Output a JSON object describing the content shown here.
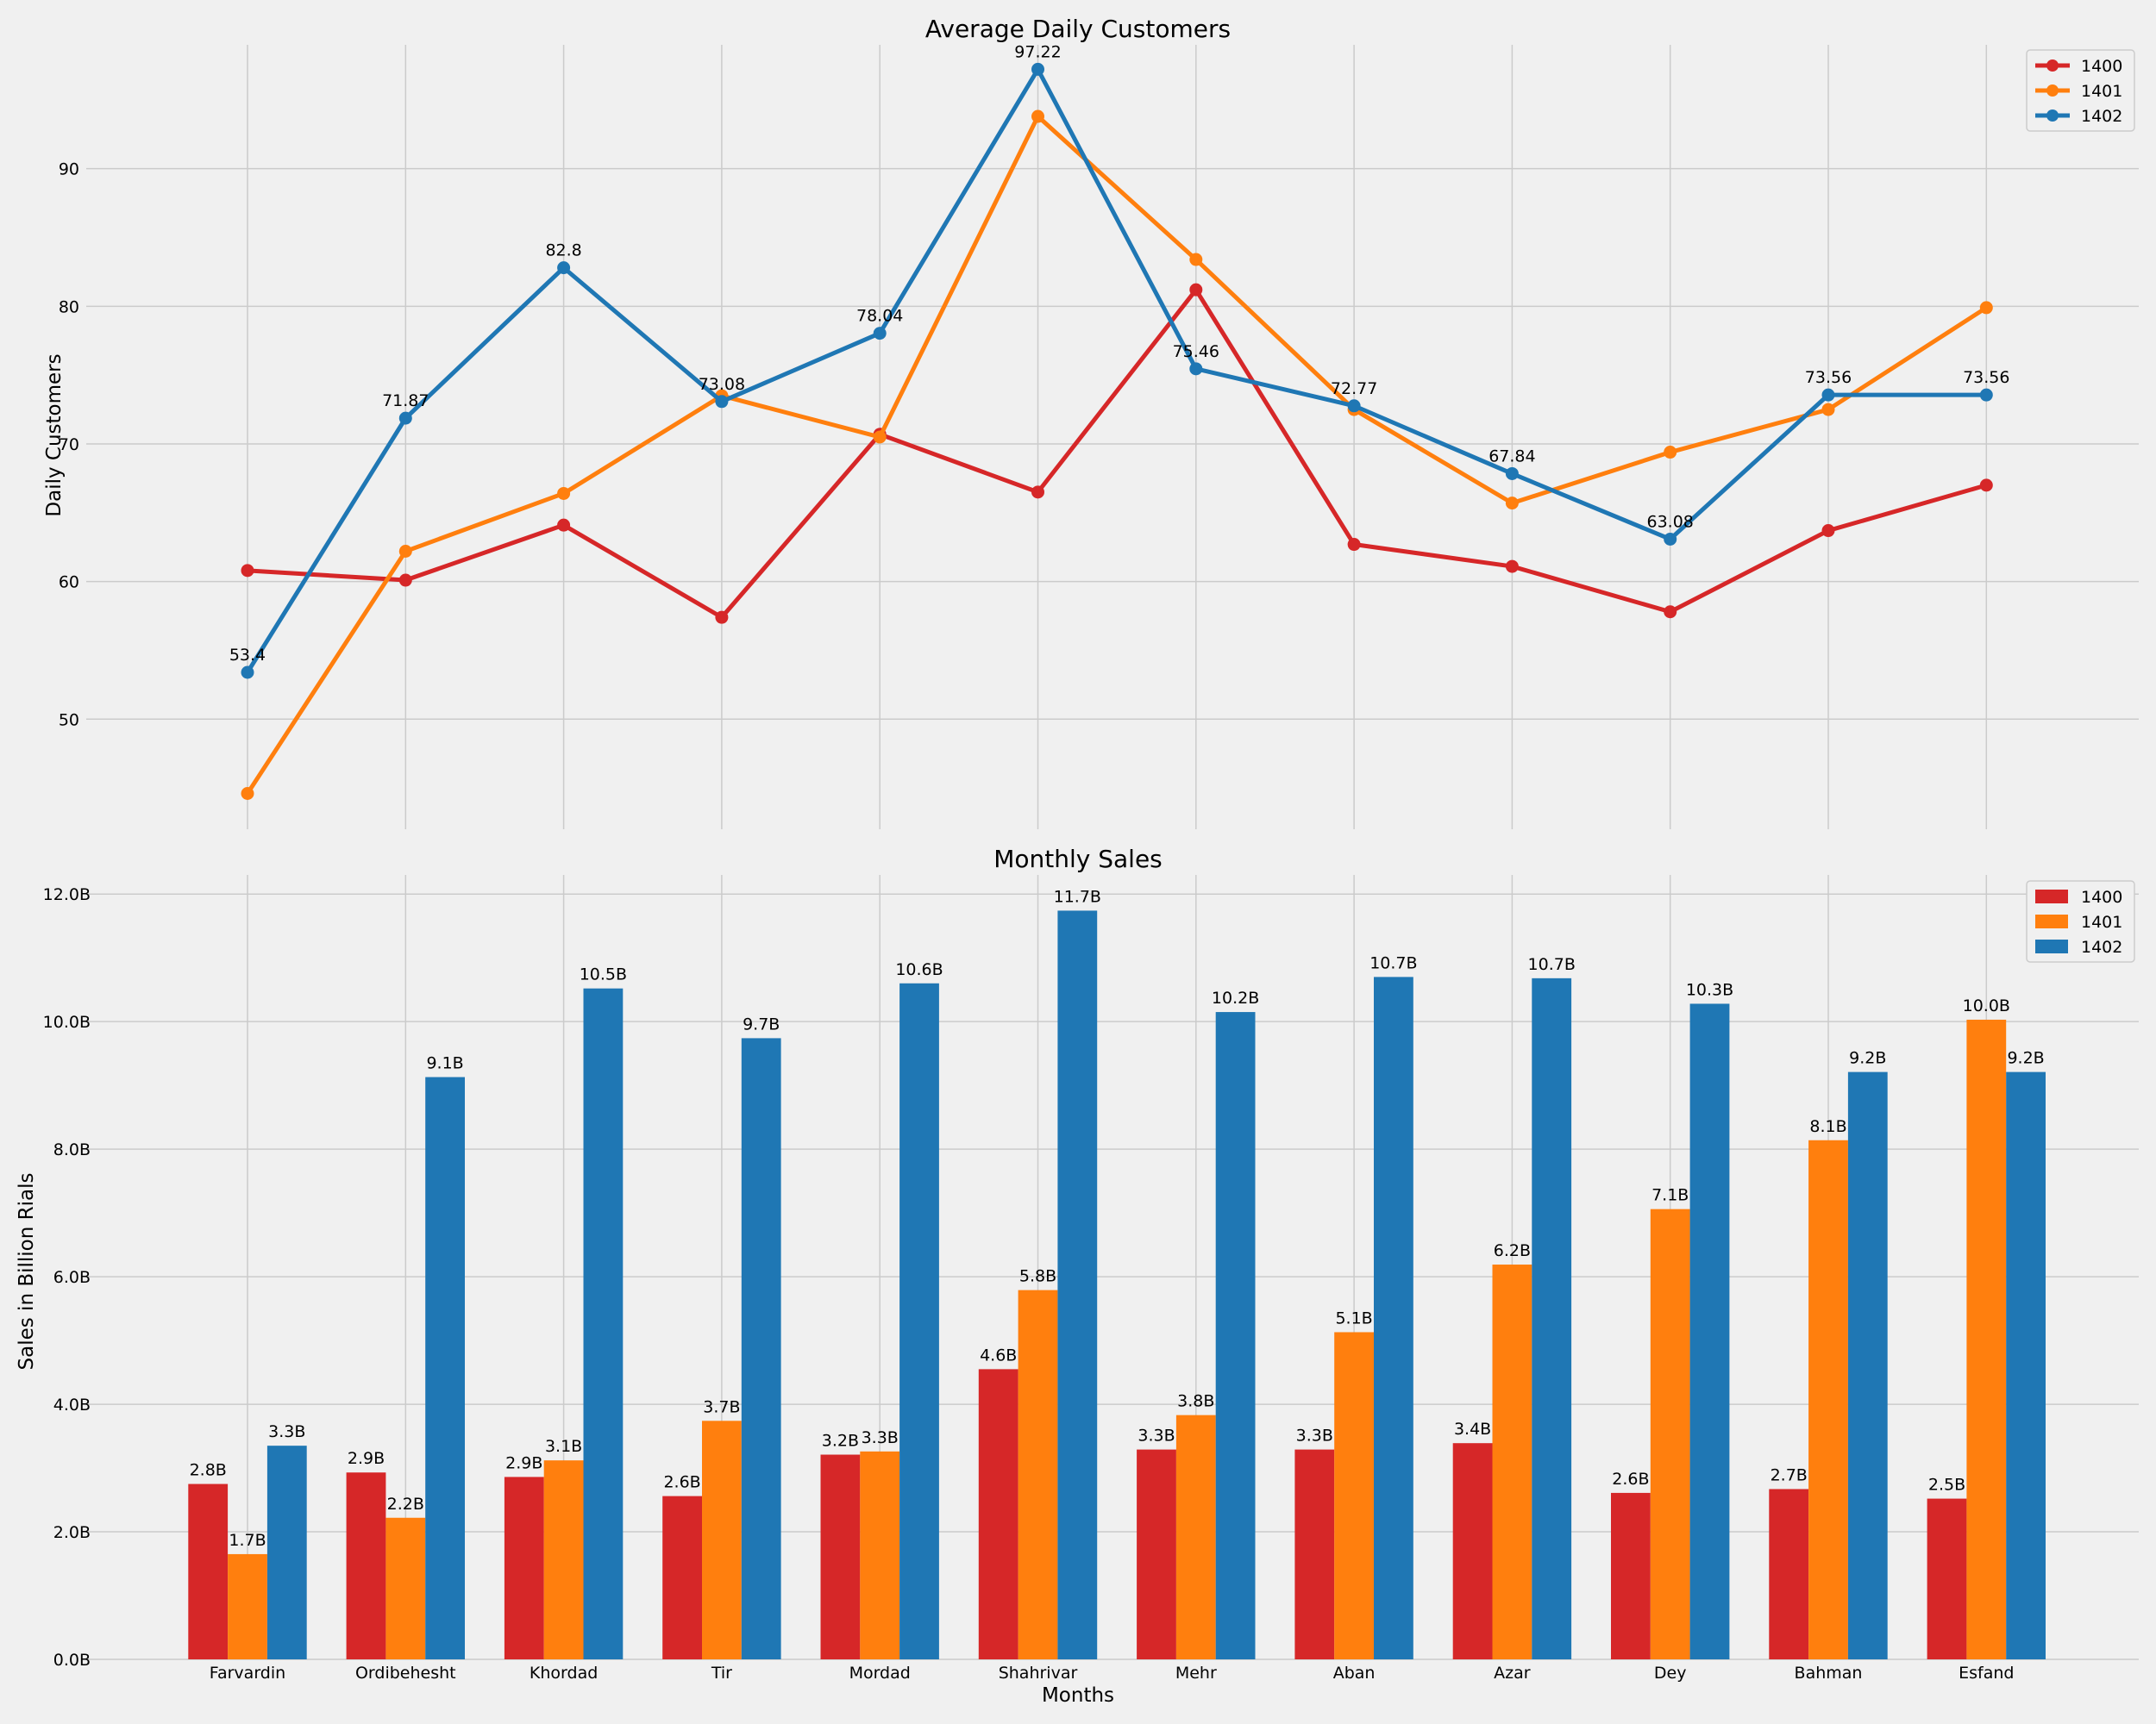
{
  "chart_data": [
    {
      "type": "line",
      "title": "Average Daily Customers",
      "xlabel": "",
      "ylabel": "Daily Customers",
      "categories": [
        "Farvardin",
        "Ordibehesht",
        "Khordad",
        "Tir",
        "Mordad",
        "Shahrivar",
        "Mehr",
        "Aban",
        "Azar",
        "Dey",
        "Bahman",
        "Esfand"
      ],
      "ylim": [
        42,
        99
      ],
      "yticks": [
        50,
        60,
        70,
        80,
        90
      ],
      "grid": true,
      "legend": "top-right",
      "series": [
        {
          "name": "1400",
          "color": "#d62728",
          "values": [
            60.8,
            60.1,
            64.1,
            57.4,
            70.7,
            66.5,
            81.2,
            62.7,
            61.1,
            57.8,
            63.7,
            67.0
          ]
        },
        {
          "name": "1401",
          "color": "#ff7f0e",
          "values": [
            44.6,
            62.2,
            66.4,
            73.5,
            70.5,
            93.8,
            83.4,
            72.5,
            65.7,
            69.4,
            72.5,
            79.9
          ]
        },
        {
          "name": "1402",
          "color": "#1f77b4",
          "values": [
            53.4,
            71.87,
            82.8,
            73.08,
            78.04,
            97.22,
            75.46,
            72.77,
            67.84,
            63.08,
            73.56,
            73.56
          ]
        }
      ],
      "annotations": [
        "53.4",
        "71.87",
        "82.8",
        "73.08",
        "78.04",
        "97.22",
        "75.46",
        "72.77",
        "67.84",
        "63.08",
        "73.56",
        "73.56"
      ]
    },
    {
      "type": "bar",
      "title": "Monthly Sales",
      "xlabel": "Months",
      "ylabel": "Sales in Billion Rials",
      "categories": [
        "Farvardin",
        "Ordibehesht",
        "Khordad",
        "Tir",
        "Mordad",
        "Shahrivar",
        "Mehr",
        "Aban",
        "Azar",
        "Dey",
        "Bahman",
        "Esfand"
      ],
      "ylim": [
        0,
        12.3
      ],
      "yticks": [
        "0.0B",
        "2.0B",
        "4.0B",
        "6.0B",
        "8.0B",
        "10.0B",
        "12.0B"
      ],
      "grid": true,
      "legend": "top-right",
      "series": [
        {
          "name": "1400",
          "color": "#d62728",
          "values": [
            2.75,
            2.93,
            2.86,
            2.56,
            3.21,
            4.55,
            3.29,
            3.29,
            3.39,
            2.61,
            2.67,
            2.52
          ],
          "labels": [
            "2.8B",
            "2.9B",
            "2.9B",
            "2.6B",
            "3.2B",
            "4.6B",
            "3.3B",
            "3.3B",
            "3.4B",
            "2.6B",
            "2.7B",
            "2.5B"
          ]
        },
        {
          "name": "1401",
          "color": "#ff7f0e",
          "values": [
            1.65,
            2.22,
            3.12,
            3.74,
            3.26,
            5.79,
            3.83,
            5.13,
            6.19,
            7.06,
            8.14,
            10.03
          ],
          "labels": [
            "1.7B",
            "2.2B",
            "3.1B",
            "3.7B",
            "3.3B",
            "5.8B",
            "3.8B",
            "5.1B",
            "6.2B",
            "7.1B",
            "8.1B",
            "10.0B"
          ]
        },
        {
          "name": "1402",
          "color": "#1f77b4",
          "values": [
            3.35,
            9.13,
            10.52,
            9.74,
            10.6,
            11.74,
            10.15,
            10.7,
            10.68,
            10.28,
            9.21,
            9.21
          ],
          "labels": [
            "3.3B",
            "9.1B",
            "10.5B",
            "9.7B",
            "10.6B",
            "11.7B",
            "10.2B",
            "10.7B",
            "10.7B",
            "10.3B",
            "9.2B",
            "9.2B"
          ]
        }
      ]
    }
  ]
}
